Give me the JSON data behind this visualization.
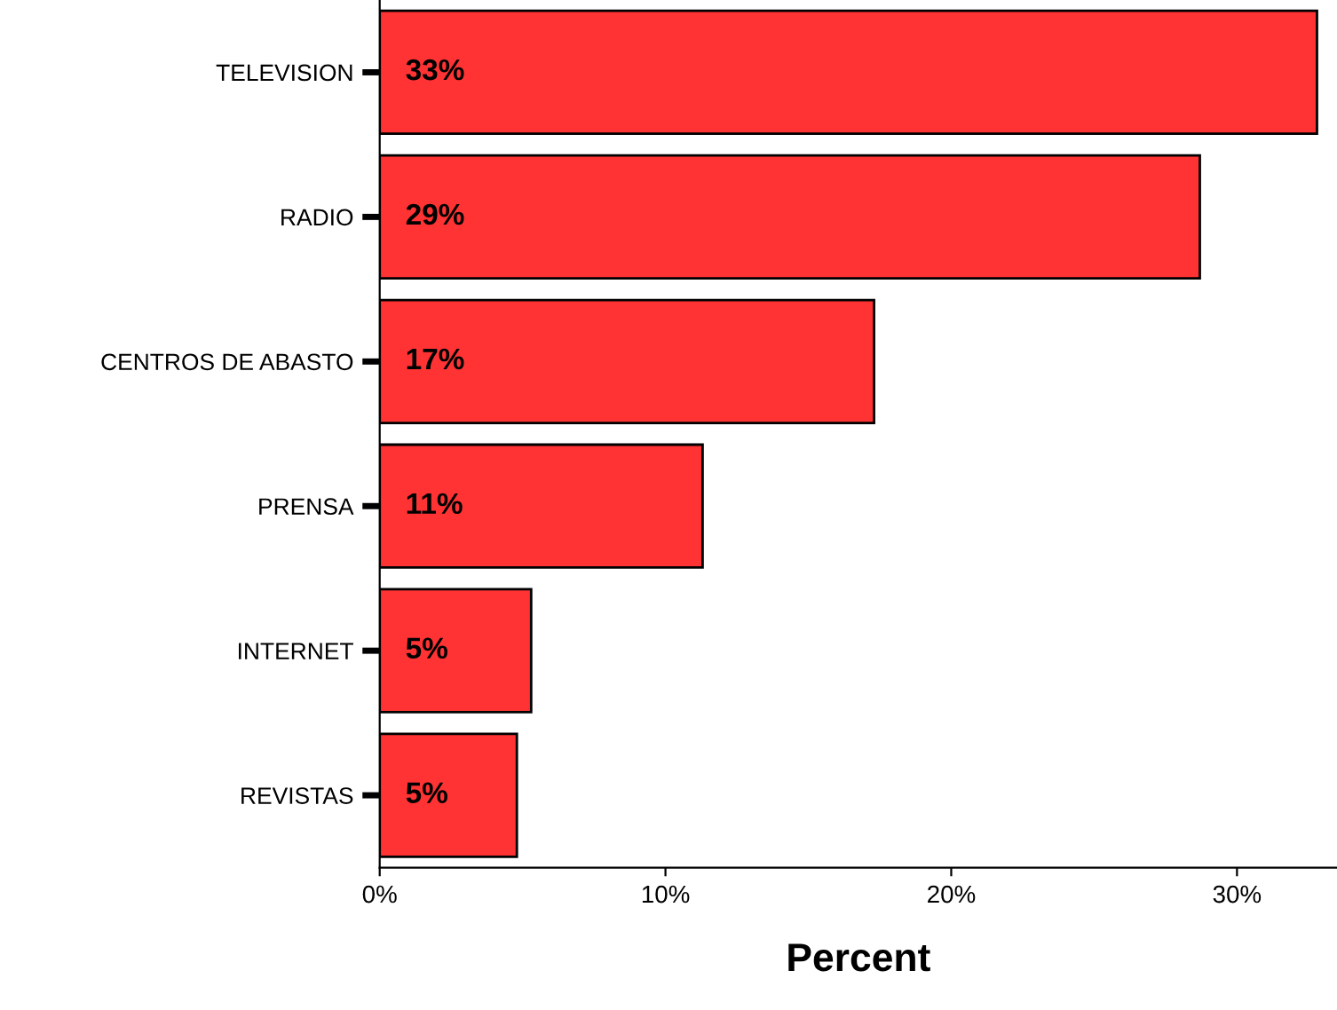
{
  "chart_data": {
    "type": "bar",
    "orientation": "horizontal",
    "xlabel": "Percent",
    "categories": [
      "TELEVISION",
      "RADIO",
      "CENTROS DE ABASTO",
      "PRENSA",
      "INTERNET",
      "REVISTAS"
    ],
    "values": [
      32.8,
      28.7,
      17.3,
      11.3,
      5.3,
      4.8
    ],
    "value_labels": [
      "33%",
      "29%",
      "17%",
      "11%",
      "5%",
      "5%"
    ],
    "color": "#ff3333",
    "xlim": [
      0,
      33.5
    ],
    "xticks": [
      {
        "value": 0,
        "label": "0%"
      },
      {
        "value": 10,
        "label": "10%"
      },
      {
        "value": 20,
        "label": "20%"
      },
      {
        "value": 30,
        "label": "30%"
      }
    ],
    "grid": false,
    "legend": false
  }
}
